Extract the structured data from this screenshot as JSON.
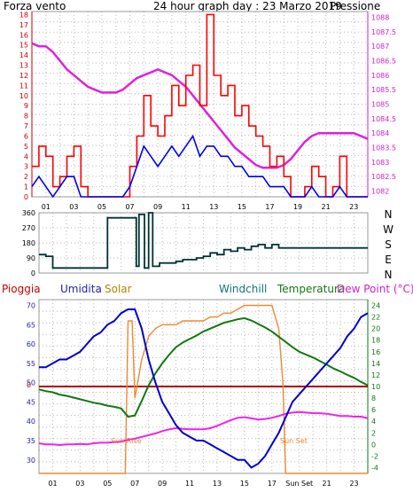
{
  "chart_data": [
    {
      "id": "wind_pressure",
      "type": "line",
      "title": "24 hour graph day : 23 Marzo 2019",
      "left_axis_label": "Forza vento",
      "right_axis_label": "Pressione",
      "left_ticks": [
        "0",
        "1",
        "2",
        "3",
        "4",
        "5",
        "6",
        "7",
        "8",
        "9",
        "10",
        "11",
        "12",
        "13",
        "14",
        "15",
        "16",
        "17",
        "18"
      ],
      "right_ticks": [
        "1082",
        "1082.5",
        "1083",
        "1083.5",
        "1084",
        "1084.5",
        "1085",
        "1085.5",
        "1086",
        "1086.5",
        "1087",
        "1087.5",
        "1088"
      ],
      "x_ticks": [
        "01",
        "03",
        "05",
        "07",
        "09",
        "11",
        "13",
        "15",
        "17",
        "19",
        "21",
        "23"
      ],
      "ylim_left": [
        0,
        18.3
      ],
      "ylim_right": [
        1081.8,
        1088.2
      ],
      "xlim": [
        0,
        24
      ],
      "colors": {
        "gust": "#ff0000",
        "average": "#0000ee",
        "pressure": "#dd22dd",
        "left_axis": "#cc0000",
        "right_axis": "#cc22cc",
        "title": "#3333cc"
      },
      "series": [
        {
          "key": "pressure",
          "x": [
            0,
            0.5,
            1,
            1.5,
            2,
            2.5,
            3,
            3.5,
            4,
            4.5,
            5,
            5.5,
            6,
            6.5,
            7,
            7.5,
            8,
            8.5,
            9,
            9.5,
            10,
            10.5,
            11,
            11.5,
            12,
            12.5,
            13,
            13.5,
            14,
            14.5,
            15,
            15.5,
            16,
            16.5,
            17,
            17.5,
            18,
            18.5,
            19,
            19.5,
            20,
            20.5,
            21,
            21.5,
            22,
            22.5,
            23,
            23.5,
            24
          ],
          "values": [
            1087.1,
            1087.0,
            1087.0,
            1086.8,
            1086.5,
            1086.2,
            1086.0,
            1085.8,
            1085.6,
            1085.5,
            1085.4,
            1085.4,
            1085.4,
            1085.5,
            1085.7,
            1085.9,
            1086.0,
            1086.1,
            1086.2,
            1086.1,
            1086.0,
            1085.8,
            1085.6,
            1085.3,
            1085.0,
            1084.7,
            1084.4,
            1084.1,
            1083.8,
            1083.5,
            1083.3,
            1083.1,
            1082.9,
            1082.8,
            1082.8,
            1082.8,
            1082.9,
            1083.1,
            1083.4,
            1083.7,
            1083.9,
            1084.0,
            1084.0,
            1084.0,
            1084.0,
            1084.0,
            1084.0,
            1083.9,
            1083.8
          ]
        },
        {
          "key": "gust",
          "x": [
            0,
            0.5,
            1,
            1.5,
            2,
            2.5,
            3,
            3.5,
            4,
            4.5,
            5,
            5.5,
            6,
            6.5,
            7,
            7.5,
            8,
            8.5,
            9,
            9.5,
            10,
            10.5,
            11,
            11.5,
            12,
            12.5,
            13,
            13.5,
            14,
            14.5,
            15,
            15.5,
            16,
            16.5,
            17,
            17.5,
            18,
            18.5,
            19,
            19.5,
            20,
            20.5,
            21,
            21.5,
            22,
            22.5,
            23,
            23.5,
            24
          ],
          "values": [
            3,
            5,
            4,
            1,
            2,
            4,
            5,
            1,
            0,
            0,
            0,
            0,
            0,
            0,
            3,
            6,
            10,
            7,
            6,
            8,
            11,
            9,
            12,
            13,
            9,
            18,
            12,
            10,
            11,
            8,
            9,
            7,
            6,
            5,
            3,
            4,
            2,
            0,
            0,
            1,
            3,
            2,
            0,
            1,
            4,
            0,
            0,
            0,
            0
          ]
        },
        {
          "key": "average",
          "x": [
            0,
            0.5,
            1,
            1.5,
            2,
            2.5,
            3,
            3.5,
            4,
            4.5,
            5,
            5.5,
            6,
            6.5,
            7,
            7.5,
            8,
            8.5,
            9,
            9.5,
            10,
            10.5,
            11,
            11.5,
            12,
            12.5,
            13,
            13.5,
            14,
            14.5,
            15,
            15.5,
            16,
            16.5,
            17,
            17.5,
            18,
            18.5,
            19,
            19.5,
            20,
            20.5,
            21,
            21.5,
            22,
            22.5,
            23,
            23.5,
            24
          ],
          "values": [
            1,
            2,
            1,
            0,
            1,
            2,
            2,
            0,
            0,
            0,
            0,
            0,
            0,
            0,
            1,
            3,
            5,
            4,
            3,
            4,
            5,
            4,
            5,
            6,
            4,
            5,
            5,
            4,
            4,
            3,
            3,
            2,
            2,
            2,
            1,
            1,
            1,
            0,
            0,
            0,
            1,
            0,
            0,
            0,
            1,
            0,
            0,
            0,
            0
          ]
        }
      ]
    },
    {
      "id": "wind_direction",
      "type": "line",
      "left_ticks": [
        "0",
        "90",
        "180",
        "270",
        "360"
      ],
      "right_ticks": [
        "N",
        "W",
        "S",
        "E",
        "N"
      ],
      "ylim": [
        0,
        360
      ],
      "xlim": [
        0,
        24
      ],
      "colors": {
        "direction": "#003333"
      },
      "series": [
        {
          "key": "direction",
          "x": [
            0,
            0.5,
            1,
            1.5,
            2,
            2.5,
            3,
            3.5,
            4,
            4.5,
            5,
            5.5,
            6,
            6.5,
            7,
            7.1,
            7.3,
            7.5,
            7.7,
            8,
            8.3,
            8.5,
            8.8,
            9,
            9.5,
            10,
            10.5,
            11,
            11.5,
            12,
            12.5,
            13,
            13.5,
            14,
            14.5,
            15,
            15.5,
            16,
            16.5,
            17,
            17.5,
            18,
            19,
            20,
            21,
            22,
            23,
            24
          ],
          "values": [
            110,
            100,
            30,
            30,
            30,
            30,
            30,
            30,
            30,
            30,
            330,
            330,
            330,
            330,
            330,
            40,
            350,
            350,
            30,
            360,
            40,
            40,
            60,
            60,
            60,
            70,
            80,
            80,
            90,
            100,
            120,
            110,
            140,
            130,
            150,
            140,
            160,
            170,
            150,
            170,
            150,
            150,
            150,
            150,
            150,
            150,
            150,
            150
          ]
        }
      ]
    },
    {
      "id": "temperature_humidity",
      "type": "line",
      "top_labels": [
        "Pioggia",
        "Umidita",
        "Solar",
        "Windchill",
        "Temperatura",
        "Dew Point (°C)"
      ],
      "left_ticks": [
        "30",
        "35",
        "40",
        "45",
        "50",
        "55",
        "60",
        "65",
        "70"
      ],
      "right_ticks": [
        "-4",
        "-2",
        "0",
        "2",
        "4",
        "6",
        "8",
        "10",
        "12",
        "14",
        "16",
        "18",
        "20",
        "22",
        "24"
      ],
      "x_ticks": [
        "01",
        "03",
        "05",
        "07",
        "09",
        "11",
        "13",
        "15",
        "17",
        "Sun Set",
        "21",
        "23"
      ],
      "annotations": [
        "Sun Rise",
        "Sun Set"
      ],
      "rain_value": "0",
      "ylim_left": [
        26.5,
        71.5
      ],
      "ylim_right": [
        -5,
        25
      ],
      "xlim": [
        0,
        24
      ],
      "colors": {
        "humidity": "#0000cc",
        "solar": "#ee8833",
        "temperature": "#117711",
        "dew_point": "#ee22ee",
        "rain": "#aa0000",
        "pioggia_label": "#cc0000",
        "umidita_label": "#2222aa",
        "solar_label": "#aa8800",
        "windchill_label": "#117777",
        "temperatura_label": "#117711",
        "dew_label": "#cc22cc",
        "right_axis": "#117711"
      },
      "series": [
        {
          "key": "humidity",
          "axis": "left",
          "x": [
            0,
            0.5,
            1,
            1.5,
            2,
            2.5,
            3,
            3.5,
            4,
            4.5,
            5,
            5.5,
            6,
            6.5,
            7,
            7.5,
            8,
            8.5,
            9,
            9.5,
            10,
            10.5,
            11,
            11.5,
            12,
            12.5,
            13,
            13.5,
            14,
            14.5,
            15,
            15.5,
            16,
            16.5,
            17,
            17.5,
            18,
            18.5,
            19,
            19.5,
            20,
            20.5,
            21,
            21.5,
            22,
            22.5,
            23,
            23.5,
            24
          ],
          "values": [
            54,
            54,
            55,
            56,
            56,
            57,
            58,
            60,
            62,
            63,
            65,
            66,
            68,
            69,
            69,
            64,
            56,
            50,
            45,
            42,
            39,
            37,
            36,
            35,
            35,
            34,
            33,
            32,
            31,
            30,
            30,
            28,
            29,
            31,
            34,
            37,
            41,
            45,
            47,
            49,
            51,
            53,
            55,
            57,
            59,
            62,
            64,
            67,
            68
          ]
        },
        {
          "key": "solar",
          "axis": "left",
          "x": [
            0,
            3,
            5.5,
            6,
            6.3,
            6.5,
            6.8,
            7,
            7.5,
            8,
            8.5,
            9,
            9.5,
            10,
            10.5,
            11,
            11.5,
            12,
            12.5,
            13,
            13.5,
            14,
            14.5,
            15,
            15.5,
            16,
            16.5,
            16.8,
            17,
            17.5,
            17.8,
            18,
            18.3,
            18.5,
            19,
            21,
            24
          ],
          "values": [
            26.5,
            26.5,
            26.5,
            26.5,
            26.5,
            66,
            66,
            46,
            56,
            62,
            64,
            65,
            65,
            65,
            66,
            66,
            66,
            66,
            67,
            67,
            68,
            68,
            69,
            70,
            70,
            70,
            70,
            70,
            70,
            64,
            50,
            26.5,
            26.5,
            26.5,
            26.5,
            26.5,
            26.5
          ]
        },
        {
          "key": "temperature",
          "axis": "right",
          "x": [
            0,
            0.5,
            1,
            1.5,
            2,
            2.5,
            3,
            3.5,
            4,
            4.5,
            5,
            5.5,
            6,
            6.5,
            7,
            7.5,
            8,
            8.5,
            9,
            9.5,
            10,
            10.5,
            11,
            11.5,
            12,
            12.5,
            13,
            13.5,
            14,
            14.5,
            15,
            15.5,
            16,
            16.5,
            17,
            17.5,
            18,
            18.5,
            19,
            19.5,
            20,
            20.5,
            21,
            21.5,
            22,
            22.5,
            23,
            23.5,
            24
          ],
          "values": [
            9.5,
            9.2,
            9.0,
            8.6,
            8.4,
            8.1,
            7.8,
            7.5,
            7.2,
            7.0,
            6.7,
            6.5,
            6.2,
            4.8,
            5.0,
            7.5,
            10.2,
            12.3,
            14.0,
            15.5,
            16.8,
            17.6,
            18.2,
            18.8,
            19.5,
            20.0,
            20.5,
            21.0,
            21.3,
            21.6,
            21.8,
            21.4,
            20.8,
            20.2,
            19.5,
            18.6,
            17.7,
            16.8,
            16.0,
            15.5,
            15.0,
            14.4,
            13.8,
            13.1,
            12.6,
            12.0,
            11.5,
            10.8,
            10.2
          ]
        },
        {
          "key": "dew_point",
          "axis": "right",
          "x": [
            0,
            0.5,
            1,
            1.5,
            2,
            2.5,
            3,
            3.5,
            4,
            4.5,
            5,
            5.5,
            6,
            6.5,
            7,
            7.5,
            8,
            8.5,
            9,
            9.5,
            10,
            10.5,
            11,
            11.5,
            12,
            12.5,
            13,
            13.5,
            14,
            14.5,
            15,
            15.5,
            16,
            16.5,
            17,
            17.5,
            18,
            18.5,
            19,
            19.5,
            20,
            20.5,
            21,
            21.5,
            22,
            22.5,
            23,
            23.5,
            24
          ],
          "values": [
            0.2,
            0.0,
            0.0,
            -0.1,
            0.0,
            0.0,
            0.1,
            0.0,
            0.2,
            0.3,
            0.3,
            0.4,
            0.5,
            0.8,
            1.0,
            1.3,
            1.6,
            1.9,
            2.3,
            2.6,
            2.8,
            2.7,
            2.6,
            2.6,
            2.6,
            2.8,
            3.2,
            3.7,
            4.2,
            4.6,
            4.7,
            4.5,
            4.3,
            4.4,
            4.6,
            4.9,
            5.3,
            5.5,
            5.6,
            5.5,
            5.4,
            5.4,
            5.3,
            5.1,
            4.9,
            4.9,
            4.8,
            4.8,
            4.5
          ]
        }
      ]
    }
  ]
}
